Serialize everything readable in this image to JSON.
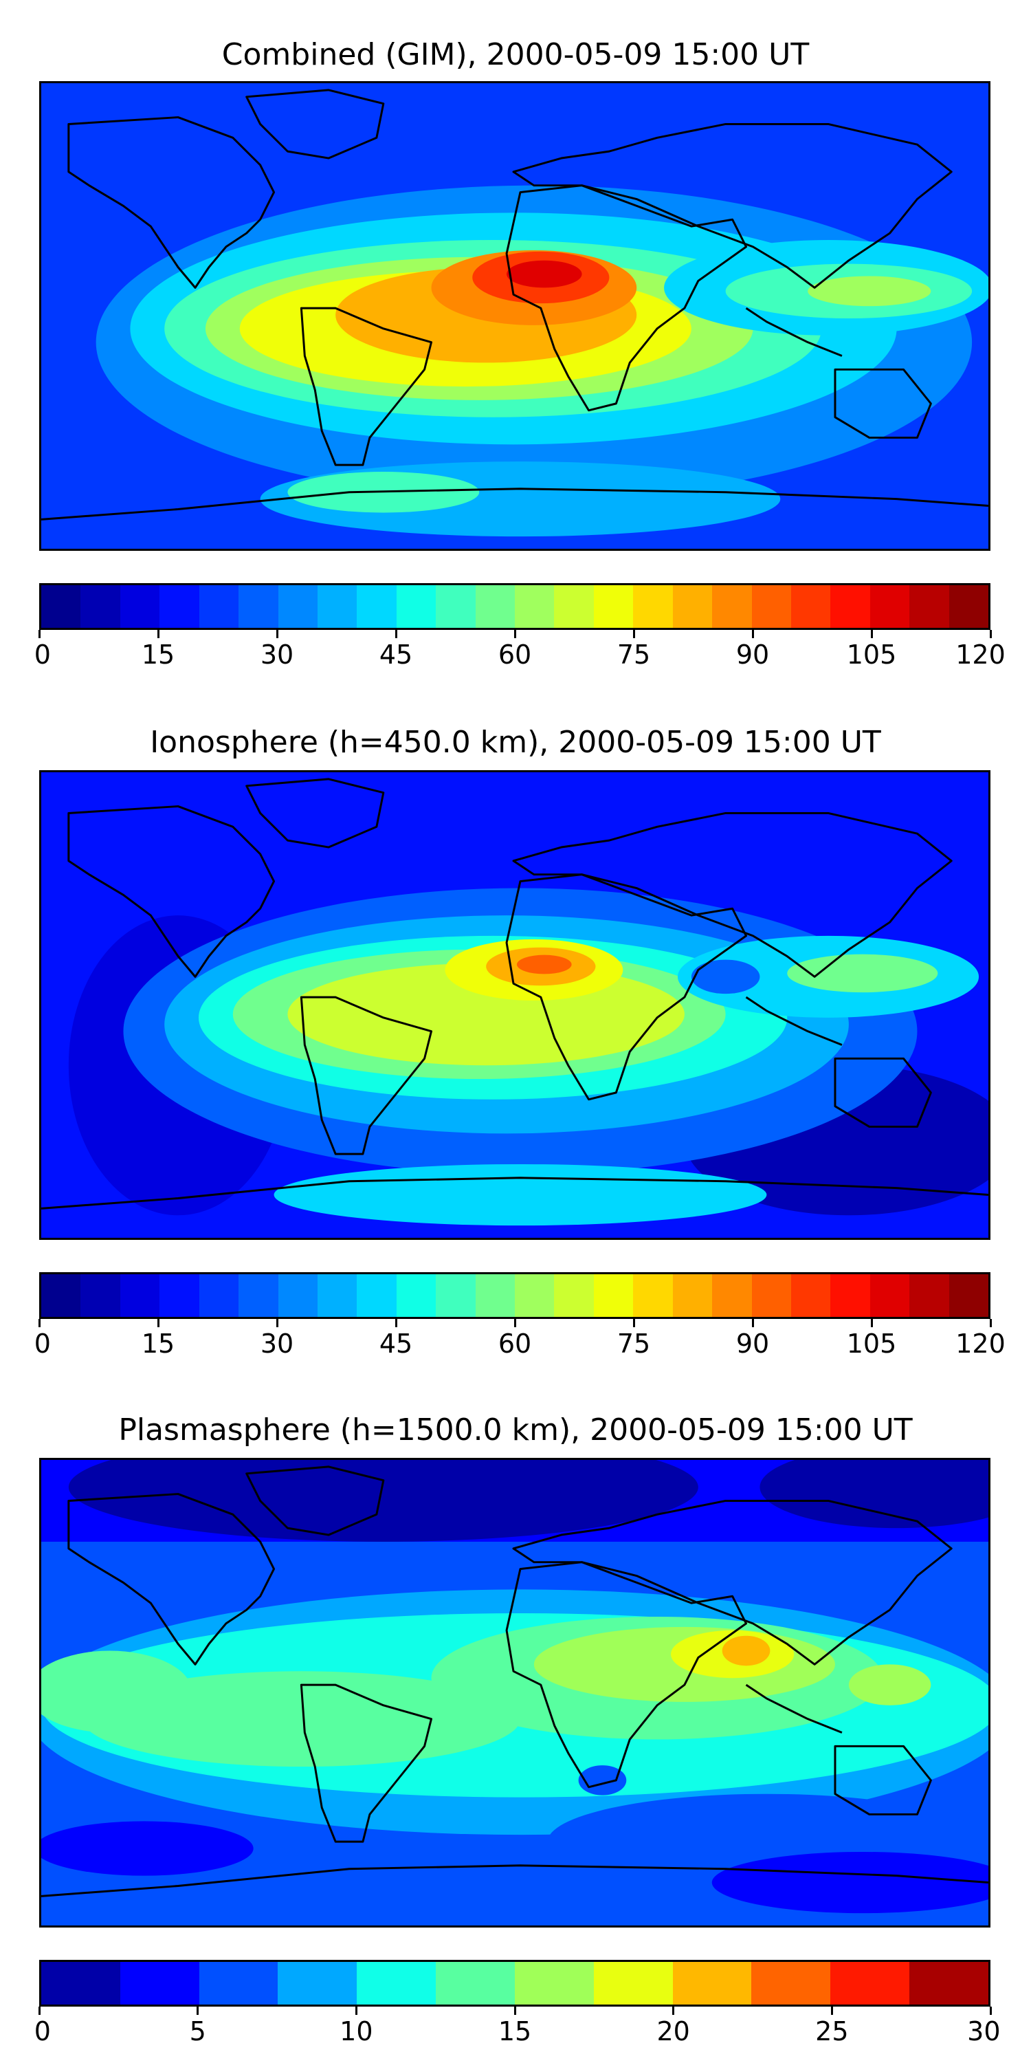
{
  "panels": [
    {
      "title": "Combined (GIM), 2000-05-09 15:00 UT",
      "levels": 24,
      "colors": [
        "#00008f",
        "#0000b3",
        "#0000e0",
        "#0010ff",
        "#0038ff",
        "#0060ff",
        "#0088ff",
        "#00b0ff",
        "#00d8ff",
        "#10ffe6",
        "#40ffbe",
        "#70ff8e",
        "#a0ff5e",
        "#ccff30",
        "#f0ff08",
        "#ffd800",
        "#ffb000",
        "#ff8800",
        "#ff6000",
        "#ff3800",
        "#ff1000",
        "#e00000",
        "#b80000",
        "#8f0000"
      ],
      "ticks": [
        "0",
        "15",
        "30",
        "45",
        "60",
        "75",
        "90",
        "105",
        "120"
      ],
      "vmax": 120
    },
    {
      "title": "Ionosphere  (h=450.0 km), 2000-05-09 15:00 UT",
      "levels": 24,
      "colors": [
        "#00008f",
        "#0000b3",
        "#0000e0",
        "#0010ff",
        "#0038ff",
        "#0060ff",
        "#0088ff",
        "#00b0ff",
        "#00d8ff",
        "#10ffe6",
        "#40ffbe",
        "#70ff8e",
        "#a0ff5e",
        "#ccff30",
        "#f0ff08",
        "#ffd800",
        "#ffb000",
        "#ff8800",
        "#ff6000",
        "#ff3800",
        "#ff1000",
        "#e00000",
        "#b80000",
        "#8f0000"
      ],
      "ticks": [
        "0",
        "15",
        "30",
        "45",
        "60",
        "75",
        "90",
        "105",
        "120"
      ],
      "vmax": 120
    },
    {
      "title": "Plasmasphere (h=1500.0 km), 2000-05-09 15:00 UT",
      "levels": 12,
      "colors": [
        "#0000a8",
        "#0000ff",
        "#0050ff",
        "#00a8ff",
        "#10ffe8",
        "#58ffa0",
        "#a0ff58",
        "#e8ff10",
        "#ffb800",
        "#ff6400",
        "#ff1a00",
        "#a80000"
      ],
      "ticks": [
        "0",
        "5",
        "10",
        "15",
        "20",
        "25",
        "30"
      ],
      "vmax": 30
    }
  ]
}
